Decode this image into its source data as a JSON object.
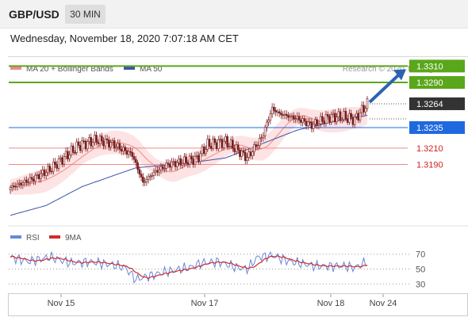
{
  "header": {
    "symbol": "GBP/USD",
    "timeframe": "30 MIN",
    "datetime": "Wednesday, November 18, 2020 7:07:18 AM CET"
  },
  "colors": {
    "candle_body": "#7a1e1e",
    "bollinger_fill": "#fde3e3",
    "ma20": "#f08a8a",
    "ma50": "#3b55a8",
    "resistance": "#5aa71b",
    "support": "#1f69e0",
    "target": "#f08a8a",
    "arrow": "#2b63b0",
    "rsi": "#6688dd",
    "rsi_ma": "#d42a2a"
  },
  "chart_data": [
    {
      "type": "candlestick",
      "legend": [
        {
          "label": "MA 20 + Bollinger Bands",
          "color": "#f08a8a"
        },
        {
          "label": "MA 50",
          "color": "#3b55a8"
        }
      ],
      "watermark": "Research © 2020 Trading Central",
      "x_ticks": [
        "Nov 15",
        "Nov 17",
        "Nov 18",
        "Nov 24"
      ],
      "ylim": [
        1.312,
        1.332
      ],
      "last_price": 1.3264,
      "levels": [
        {
          "label": "1.3310",
          "value": 1.331,
          "kind": "resistance"
        },
        {
          "label": "1.3290",
          "value": 1.329,
          "kind": "resistance"
        },
        {
          "label": "1.3264",
          "value": 1.3264,
          "kind": "last"
        },
        {
          "label": "1.3235",
          "value": 1.3235,
          "kind": "support"
        },
        {
          "label": "1.3210",
          "value": 1.321,
          "kind": "target"
        },
        {
          "label": "1.3190",
          "value": 1.319,
          "kind": "target"
        }
      ],
      "price_waypoints": [
        [
          0,
          1.3162
        ],
        [
          12,
          1.3172
        ],
        [
          22,
          1.3184
        ],
        [
          38,
          1.3213
        ],
        [
          48,
          1.322
        ],
        [
          56,
          1.3216
        ],
        [
          68,
          1.3202
        ],
        [
          74,
          1.3168
        ],
        [
          80,
          1.318
        ],
        [
          88,
          1.319
        ],
        [
          100,
          1.3195
        ],
        [
          104,
          1.3197
        ],
        [
          110,
          1.3214
        ],
        [
          120,
          1.3218
        ],
        [
          127,
          1.3207
        ],
        [
          132,
          1.3198
        ],
        [
          140,
          1.3222
        ],
        [
          146,
          1.3258
        ],
        [
          150,
          1.3252
        ],
        [
          160,
          1.3246
        ],
        [
          168,
          1.3238
        ],
        [
          178,
          1.3248
        ],
        [
          186,
          1.3248
        ],
        [
          192,
          1.3245
        ],
        [
          199,
          1.3264
        ]
      ],
      "ma50_waypoints": [
        [
          0,
          1.3128
        ],
        [
          20,
          1.314
        ],
        [
          40,
          1.3163
        ],
        [
          70,
          1.3186
        ],
        [
          100,
          1.3192
        ],
        [
          120,
          1.3198
        ],
        [
          140,
          1.3215
        ],
        [
          160,
          1.3232
        ],
        [
          180,
          1.3242
        ],
        [
          199,
          1.325
        ]
      ],
      "band_half_width": 0.0012
    },
    {
      "type": "line",
      "legend": [
        {
          "label": "RSI",
          "color": "#6688dd"
        },
        {
          "label": "9MA",
          "color": "#d42a2a"
        }
      ],
      "y_ticks": [
        70,
        50,
        30
      ],
      "ylim": [
        25,
        75
      ],
      "rsi_waypoints": [
        [
          0,
          66
        ],
        [
          10,
          60
        ],
        [
          22,
          66
        ],
        [
          34,
          58
        ],
        [
          44,
          60
        ],
        [
          56,
          56
        ],
        [
          64,
          52
        ],
        [
          70,
          36
        ],
        [
          76,
          40
        ],
        [
          86,
          46
        ],
        [
          100,
          52
        ],
        [
          106,
          58
        ],
        [
          116,
          60
        ],
        [
          126,
          52
        ],
        [
          132,
          50
        ],
        [
          138,
          66
        ],
        [
          146,
          68
        ],
        [
          156,
          60
        ],
        [
          170,
          54
        ],
        [
          186,
          54
        ],
        [
          192,
          52
        ],
        [
          199,
          60
        ]
      ]
    }
  ]
}
